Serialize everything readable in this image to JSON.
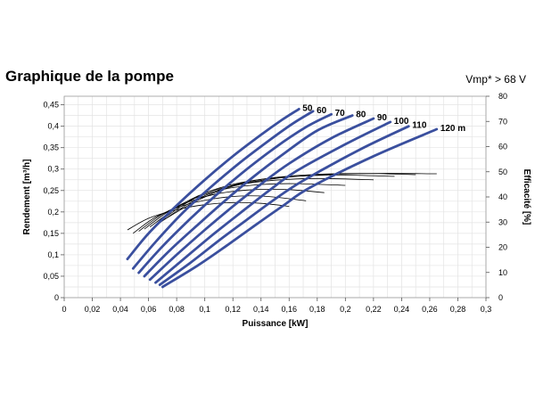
{
  "header": {
    "title": "Graphique de la pompe",
    "subtitle": "Vmp* > 68 V"
  },
  "chart_data": {
    "type": "line",
    "title": "Graphique de la pompe",
    "subtitle": "Vmp* > 68 V",
    "xlabel": "Puissance [kW]",
    "ylabel": "Rendement [m³/h]",
    "y2label": "Efficacité [%]",
    "xlim": [
      0,
      0.3
    ],
    "ylim": [
      0,
      0.47
    ],
    "y2lim": [
      0,
      80
    ],
    "grid": true,
    "xticks": [
      "0",
      "0,02",
      "0,04",
      "0,06",
      "0,08",
      "0,1",
      "0,12",
      "0,14",
      "0,16",
      "0,18",
      "0,2",
      "0,22",
      "0,24",
      "0,26",
      "0,28",
      "0,3"
    ],
    "yticks": [
      "0",
      "0,05",
      "0,1",
      "0,15",
      "0,2",
      "0,25",
      "0,3",
      "0,35",
      "0,4",
      "0,45"
    ],
    "y2ticks": [
      "0",
      "10",
      "20",
      "30",
      "40",
      "50",
      "60",
      "70",
      "80"
    ],
    "series_color": "#3a4f9e",
    "efficiency_color": "#000000",
    "series": [
      {
        "name": "50",
        "label": "50",
        "points": [
          [
            0.045,
            0.09
          ],
          [
            0.06,
            0.15
          ],
          [
            0.08,
            0.215
          ],
          [
            0.1,
            0.275
          ],
          [
            0.12,
            0.33
          ],
          [
            0.14,
            0.38
          ],
          [
            0.155,
            0.415
          ],
          [
            0.167,
            0.44
          ]
        ]
      },
      {
        "name": "60",
        "label": "60",
        "points": [
          [
            0.049,
            0.068
          ],
          [
            0.065,
            0.13
          ],
          [
            0.085,
            0.2
          ],
          [
            0.105,
            0.26
          ],
          [
            0.125,
            0.315
          ],
          [
            0.145,
            0.365
          ],
          [
            0.162,
            0.405
          ],
          [
            0.177,
            0.435
          ]
        ]
      },
      {
        "name": "70",
        "label": "70",
        "points": [
          [
            0.053,
            0.058
          ],
          [
            0.07,
            0.12
          ],
          [
            0.09,
            0.185
          ],
          [
            0.11,
            0.245
          ],
          [
            0.13,
            0.3
          ],
          [
            0.15,
            0.35
          ],
          [
            0.172,
            0.398
          ],
          [
            0.19,
            0.428
          ]
        ]
      },
      {
        "name": "80",
        "label": "80",
        "points": [
          [
            0.057,
            0.05
          ],
          [
            0.075,
            0.11
          ],
          [
            0.095,
            0.17
          ],
          [
            0.115,
            0.228
          ],
          [
            0.135,
            0.283
          ],
          [
            0.155,
            0.333
          ],
          [
            0.18,
            0.39
          ],
          [
            0.205,
            0.425
          ]
        ]
      },
      {
        "name": "90",
        "label": "90",
        "points": [
          [
            0.061,
            0.042
          ],
          [
            0.08,
            0.1
          ],
          [
            0.1,
            0.158
          ],
          [
            0.12,
            0.213
          ],
          [
            0.14,
            0.265
          ],
          [
            0.16,
            0.313
          ],
          [
            0.19,
            0.372
          ],
          [
            0.22,
            0.418
          ]
        ]
      },
      {
        "name": "100",
        "label": "100",
        "points": [
          [
            0.065,
            0.035
          ],
          [
            0.085,
            0.09
          ],
          [
            0.105,
            0.145
          ],
          [
            0.125,
            0.197
          ],
          [
            0.145,
            0.248
          ],
          [
            0.165,
            0.295
          ],
          [
            0.2,
            0.358
          ],
          [
            0.232,
            0.41
          ]
        ]
      },
      {
        "name": "110",
        "label": "110",
        "points": [
          [
            0.068,
            0.03
          ],
          [
            0.09,
            0.082
          ],
          [
            0.11,
            0.133
          ],
          [
            0.13,
            0.182
          ],
          [
            0.15,
            0.23
          ],
          [
            0.17,
            0.273
          ],
          [
            0.21,
            0.345
          ],
          [
            0.245,
            0.4
          ]
        ]
      },
      {
        "name": "120 m",
        "label": "120 m",
        "points": [
          [
            0.07,
            0.025
          ],
          [
            0.095,
            0.075
          ],
          [
            0.115,
            0.12
          ],
          [
            0.135,
            0.167
          ],
          [
            0.155,
            0.213
          ],
          [
            0.175,
            0.257
          ],
          [
            0.22,
            0.33
          ],
          [
            0.265,
            0.393
          ]
        ]
      }
    ],
    "efficiency_curves": [
      {
        "points": [
          [
            0.045,
            0.158
          ],
          [
            0.06,
            0.185
          ],
          [
            0.08,
            0.205
          ],
          [
            0.1,
            0.217
          ],
          [
            0.12,
            0.222
          ],
          [
            0.14,
            0.22
          ],
          [
            0.16,
            0.213
          ]
        ]
      },
      {
        "points": [
          [
            0.049,
            0.15
          ],
          [
            0.065,
            0.188
          ],
          [
            0.085,
            0.215
          ],
          [
            0.105,
            0.23
          ],
          [
            0.125,
            0.237
          ],
          [
            0.145,
            0.236
          ],
          [
            0.172,
            0.226
          ]
        ]
      },
      {
        "points": [
          [
            0.053,
            0.155
          ],
          [
            0.07,
            0.195
          ],
          [
            0.09,
            0.225
          ],
          [
            0.11,
            0.243
          ],
          [
            0.135,
            0.252
          ],
          [
            0.16,
            0.252
          ],
          [
            0.185,
            0.245
          ]
        ]
      },
      {
        "points": [
          [
            0.057,
            0.16
          ],
          [
            0.075,
            0.203
          ],
          [
            0.095,
            0.235
          ],
          [
            0.115,
            0.254
          ],
          [
            0.14,
            0.264
          ],
          [
            0.165,
            0.266
          ],
          [
            0.2,
            0.262
          ]
        ]
      },
      {
        "points": [
          [
            0.061,
            0.165
          ],
          [
            0.08,
            0.21
          ],
          [
            0.1,
            0.244
          ],
          [
            0.125,
            0.264
          ],
          [
            0.15,
            0.274
          ],
          [
            0.18,
            0.278
          ],
          [
            0.22,
            0.275
          ]
        ]
      },
      {
        "points": [
          [
            0.065,
            0.17
          ],
          [
            0.085,
            0.217
          ],
          [
            0.105,
            0.25
          ],
          [
            0.13,
            0.271
          ],
          [
            0.16,
            0.282
          ],
          [
            0.195,
            0.286
          ],
          [
            0.235,
            0.283
          ]
        ]
      },
      {
        "points": [
          [
            0.068,
            0.175
          ],
          [
            0.09,
            0.222
          ],
          [
            0.115,
            0.257
          ],
          [
            0.14,
            0.276
          ],
          [
            0.17,
            0.286
          ],
          [
            0.21,
            0.29
          ],
          [
            0.25,
            0.287
          ]
        ]
      },
      {
        "points": [
          [
            0.07,
            0.18
          ],
          [
            0.095,
            0.227
          ],
          [
            0.12,
            0.26
          ],
          [
            0.15,
            0.278
          ],
          [
            0.185,
            0.287
          ],
          [
            0.225,
            0.29
          ],
          [
            0.265,
            0.289
          ]
        ]
      }
    ]
  }
}
